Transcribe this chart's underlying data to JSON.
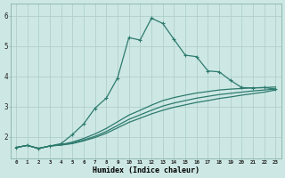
{
  "xlabel": "Humidex (Indice chaleur)",
  "background_color": "#cde8e4",
  "grid_color": "#b0d0cc",
  "line_color": "#2d7a6e",
  "xlim": [
    -0.5,
    23.5
  ],
  "ylim": [
    1.3,
    6.4
  ],
  "yticks": [
    2,
    3,
    4,
    5,
    6
  ],
  "xticks": [
    0,
    1,
    2,
    3,
    4,
    5,
    6,
    7,
    8,
    9,
    10,
    11,
    12,
    13,
    14,
    15,
    16,
    17,
    18,
    19,
    20,
    21,
    22,
    23
  ],
  "series": [
    {
      "x": [
        0,
        1,
        2,
        3,
        4,
        5,
        6,
        7,
        8,
        9,
        10,
        11,
        12,
        13,
        14,
        15,
        16,
        17,
        18,
        19,
        20,
        21,
        22,
        23
      ],
      "y": [
        1.65,
        1.72,
        1.62,
        1.7,
        1.78,
        2.08,
        2.43,
        2.95,
        3.28,
        3.95,
        5.28,
        5.2,
        5.92,
        5.75,
        5.22,
        4.7,
        4.65,
        4.18,
        4.15,
        3.87,
        3.63,
        3.62,
        3.63,
        3.58
      ],
      "markers": true
    },
    {
      "x": [
        0,
        1,
        2,
        3,
        4,
        5,
        6,
        7,
        8,
        9,
        10,
        11,
        12,
        13,
        14,
        15,
        16,
        17,
        18,
        19,
        20,
        21,
        22,
        23
      ],
      "y": [
        1.65,
        1.72,
        1.62,
        1.7,
        1.75,
        1.83,
        1.95,
        2.1,
        2.28,
        2.5,
        2.72,
        2.88,
        3.05,
        3.2,
        3.3,
        3.38,
        3.45,
        3.5,
        3.55,
        3.58,
        3.6,
        3.62,
        3.63,
        3.65
      ],
      "markers": false
    },
    {
      "x": [
        0,
        1,
        2,
        3,
        4,
        5,
        6,
        7,
        8,
        9,
        10,
        11,
        12,
        13,
        14,
        15,
        16,
        17,
        18,
        19,
        20,
        21,
        22,
        23
      ],
      "y": [
        1.65,
        1.72,
        1.62,
        1.7,
        1.74,
        1.8,
        1.9,
        2.02,
        2.18,
        2.38,
        2.58,
        2.73,
        2.88,
        3.02,
        3.12,
        3.2,
        3.28,
        3.34,
        3.4,
        3.44,
        3.48,
        3.52,
        3.55,
        3.58
      ],
      "markers": false
    },
    {
      "x": [
        0,
        1,
        2,
        3,
        4,
        5,
        6,
        7,
        8,
        9,
        10,
        11,
        12,
        13,
        14,
        15,
        16,
        17,
        18,
        19,
        20,
        21,
        22,
        23
      ],
      "y": [
        1.65,
        1.72,
        1.62,
        1.7,
        1.73,
        1.78,
        1.87,
        1.98,
        2.12,
        2.3,
        2.48,
        2.62,
        2.76,
        2.88,
        2.98,
        3.06,
        3.14,
        3.2,
        3.27,
        3.32,
        3.38,
        3.43,
        3.48,
        3.55
      ],
      "markers": false
    }
  ]
}
